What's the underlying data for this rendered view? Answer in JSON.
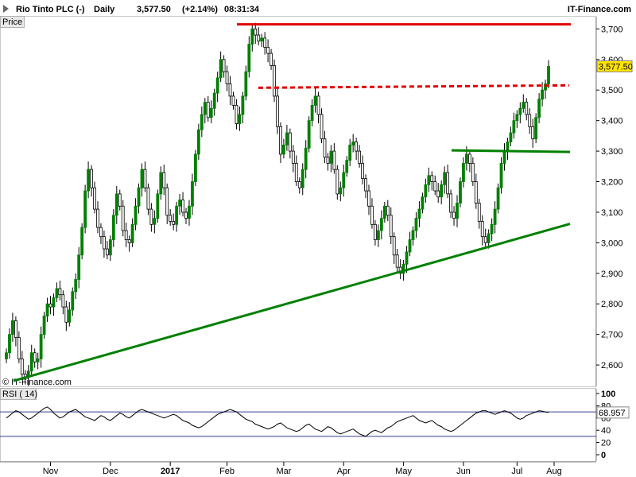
{
  "header": {
    "instrument": "Rio Tinto PLC (-)",
    "period": "Daily",
    "price": "3,577.50",
    "change": "(+2.14%)",
    "time": "08:31:34",
    "source": "IT-Finance.com"
  },
  "price_panel_label": "Price",
  "rsi_panel_label": "RSI ( 14)",
  "copyright": "© IT-Finance.com",
  "last_price_badge": "3,577.50",
  "rsi_badge": "68.957",
  "chart_data": [
    {
      "type": "candlestick",
      "title": "Rio Tinto PLC (-)",
      "x_tick_labels": [
        "Nov",
        "Dec",
        "2017",
        "Feb",
        "Mar",
        "Apr",
        "May",
        "Jun",
        "Jul",
        "Aug"
      ],
      "y_tick_labels": [
        "2,600",
        "2,700",
        "2,800",
        "2,900",
        "3,000",
        "3,100",
        "3,200",
        "3,300",
        "3,400",
        "3,500",
        "3,600",
        "3,700"
      ],
      "ylim": [
        2530,
        3740
      ],
      "grid": false,
      "colors": {
        "up": "#008000",
        "down": "#000000",
        "resistance": "#e00000",
        "support": "#008000"
      },
      "close": [
        2640,
        2700,
        2745,
        2690,
        2620,
        2570,
        2560,
        2580,
        2640,
        2610,
        2620,
        2700,
        2760,
        2800,
        2790,
        2820,
        2850,
        2830,
        2790,
        2740,
        2780,
        2840,
        2880,
        2960,
        3050,
        3170,
        3240,
        3180,
        3110,
        3050,
        3020,
        2980,
        2960,
        3010,
        3090,
        3160,
        3120,
        3040,
        3010,
        3000,
        3060,
        3120,
        3180,
        3240,
        3180,
        3110,
        3060,
        3080,
        3160,
        3230,
        3180,
        3090,
        3070,
        3060,
        3120,
        3140,
        3100,
        3080,
        3120,
        3200,
        3290,
        3370,
        3420,
        3460,
        3410,
        3440,
        3490,
        3540,
        3600,
        3560,
        3520,
        3480,
        3450,
        3390,
        3420,
        3480,
        3560,
        3650,
        3700,
        3680,
        3660,
        3670,
        3640,
        3620,
        3580,
        3480,
        3380,
        3290,
        3320,
        3360,
        3300,
        3260,
        3200,
        3180,
        3240,
        3310,
        3400,
        3450,
        3480,
        3420,
        3340,
        3280,
        3260,
        3300,
        3240,
        3160,
        3180,
        3230,
        3270,
        3320,
        3330,
        3300,
        3260,
        3210,
        3170,
        3120,
        3060,
        3010,
        3040,
        3080,
        3120,
        3090,
        3020,
        2960,
        2920,
        2900,
        2930,
        2970,
        3010,
        3040,
        3080,
        3110,
        3150,
        3190,
        3220,
        3200,
        3170,
        3150,
        3190,
        3230,
        3160,
        3100,
        3080,
        3130,
        3200,
        3260,
        3290,
        3260,
        3200,
        3130,
        3070,
        3020,
        3000,
        3030,
        3060,
        3110,
        3180,
        3260,
        3300,
        3330,
        3360,
        3400,
        3420,
        3440,
        3460,
        3420,
        3380,
        3340,
        3410,
        3470,
        3500,
        3520,
        3577.5
      ],
      "support_trendline": {
        "from": {
          "bar": 0,
          "price": 2548
        },
        "to": {
          "bar": 176,
          "price": 3062
        }
      },
      "resistance_level": 3715,
      "resistance_dashed": 3510,
      "support_level": 3300
    },
    {
      "type": "line",
      "title": "RSI ( 14)",
      "y_tick_labels": [
        "0",
        "20",
        "40",
        "60",
        "80",
        "100"
      ],
      "ylim": [
        0,
        100
      ],
      "overbought": 70,
      "oversold": 30,
      "series": [
        {
          "values": [
            60,
            64,
            68,
            72,
            70,
            66,
            62,
            58,
            60,
            64,
            68,
            72,
            76,
            78,
            74,
            68,
            64,
            60,
            62,
            66,
            70,
            72,
            74,
            70,
            66,
            62,
            60,
            58,
            56,
            60,
            64,
            62,
            58,
            56,
            60,
            64,
            68,
            66,
            62,
            60,
            64,
            68,
            72,
            74,
            72,
            70,
            68,
            66,
            64,
            62,
            60,
            62,
            64,
            66,
            64,
            60,
            56,
            54,
            52,
            48,
            46,
            44,
            46,
            50,
            54,
            58,
            62,
            66,
            68,
            70,
            72,
            74,
            72,
            70,
            66,
            62,
            58,
            56,
            54,
            50,
            48,
            46,
            44,
            42,
            44,
            46,
            50,
            52,
            48,
            44,
            42,
            40,
            38,
            40,
            44,
            48,
            50,
            46,
            42,
            40,
            38,
            42,
            46,
            44,
            40,
            36,
            34,
            36,
            38,
            40,
            42,
            38,
            34,
            32,
            30,
            34,
            38,
            40,
            38,
            36,
            40,
            44,
            46,
            50,
            54,
            56,
            58,
            60,
            62,
            64,
            60,
            56,
            54,
            52,
            54,
            56,
            52,
            48,
            46,
            42,
            40,
            38,
            40,
            44,
            48,
            52,
            56,
            60,
            64,
            68,
            70,
            72,
            72,
            70,
            68,
            66,
            68,
            70,
            72,
            70,
            68,
            64,
            60,
            58,
            60,
            64,
            66,
            68,
            70,
            72,
            71,
            70,
            69
          ]
        }
      ]
    }
  ]
}
